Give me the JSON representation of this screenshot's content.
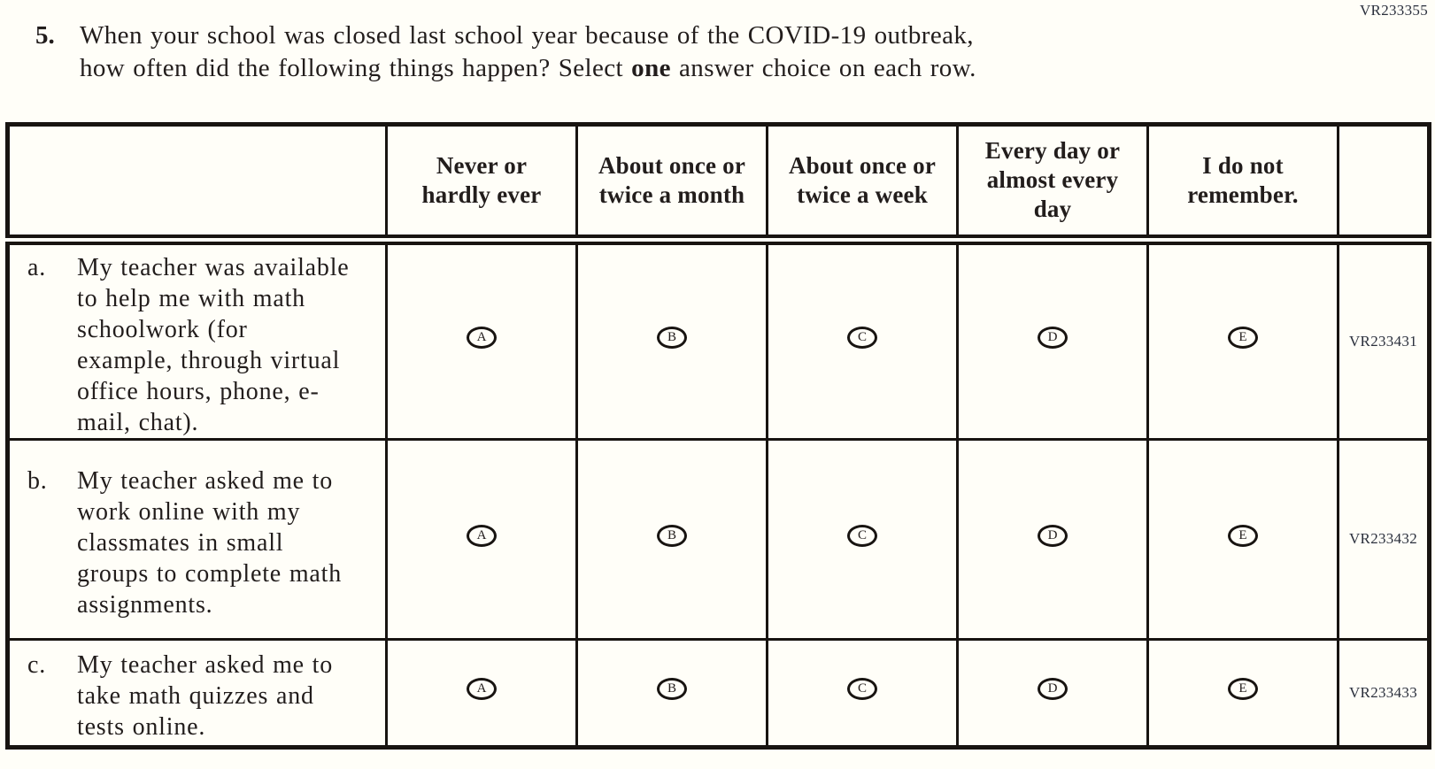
{
  "page": {
    "form_code": "VR233355"
  },
  "question": {
    "number": "5.",
    "line1": "When your school was closed last school year because of the COVID-19 outbreak,",
    "line2_before_bold": "how often did the following things happen? Select ",
    "bold_word": "one",
    "line2_after_bold": " answer choice on each row."
  },
  "table": {
    "column_headers": [
      "Never or hardly ever",
      "About once or twice a month",
      "About once or twice a week",
      "Every day or almost every day",
      "I do not remember."
    ],
    "answer_options": [
      "A",
      "B",
      "C",
      "D",
      "E"
    ],
    "rows": [
      {
        "label": "a.",
        "text": "My teacher was available to help me with math schoolwork (for example, through virtual office hours, phone, e-mail, chat).",
        "code": "VR233431"
      },
      {
        "label": "b.",
        "text": "My teacher asked me to work online with my classmates in small groups to complete math assignments.",
        "code": "VR233432"
      },
      {
        "label": "c.",
        "text": "My teacher asked me to take math quizzes and tests online.",
        "code": "VR233433"
      }
    ]
  },
  "colors": {
    "text": "#221d1c",
    "border": "#181411",
    "code_text": "#2a2f3c",
    "background": "#fffef8"
  }
}
